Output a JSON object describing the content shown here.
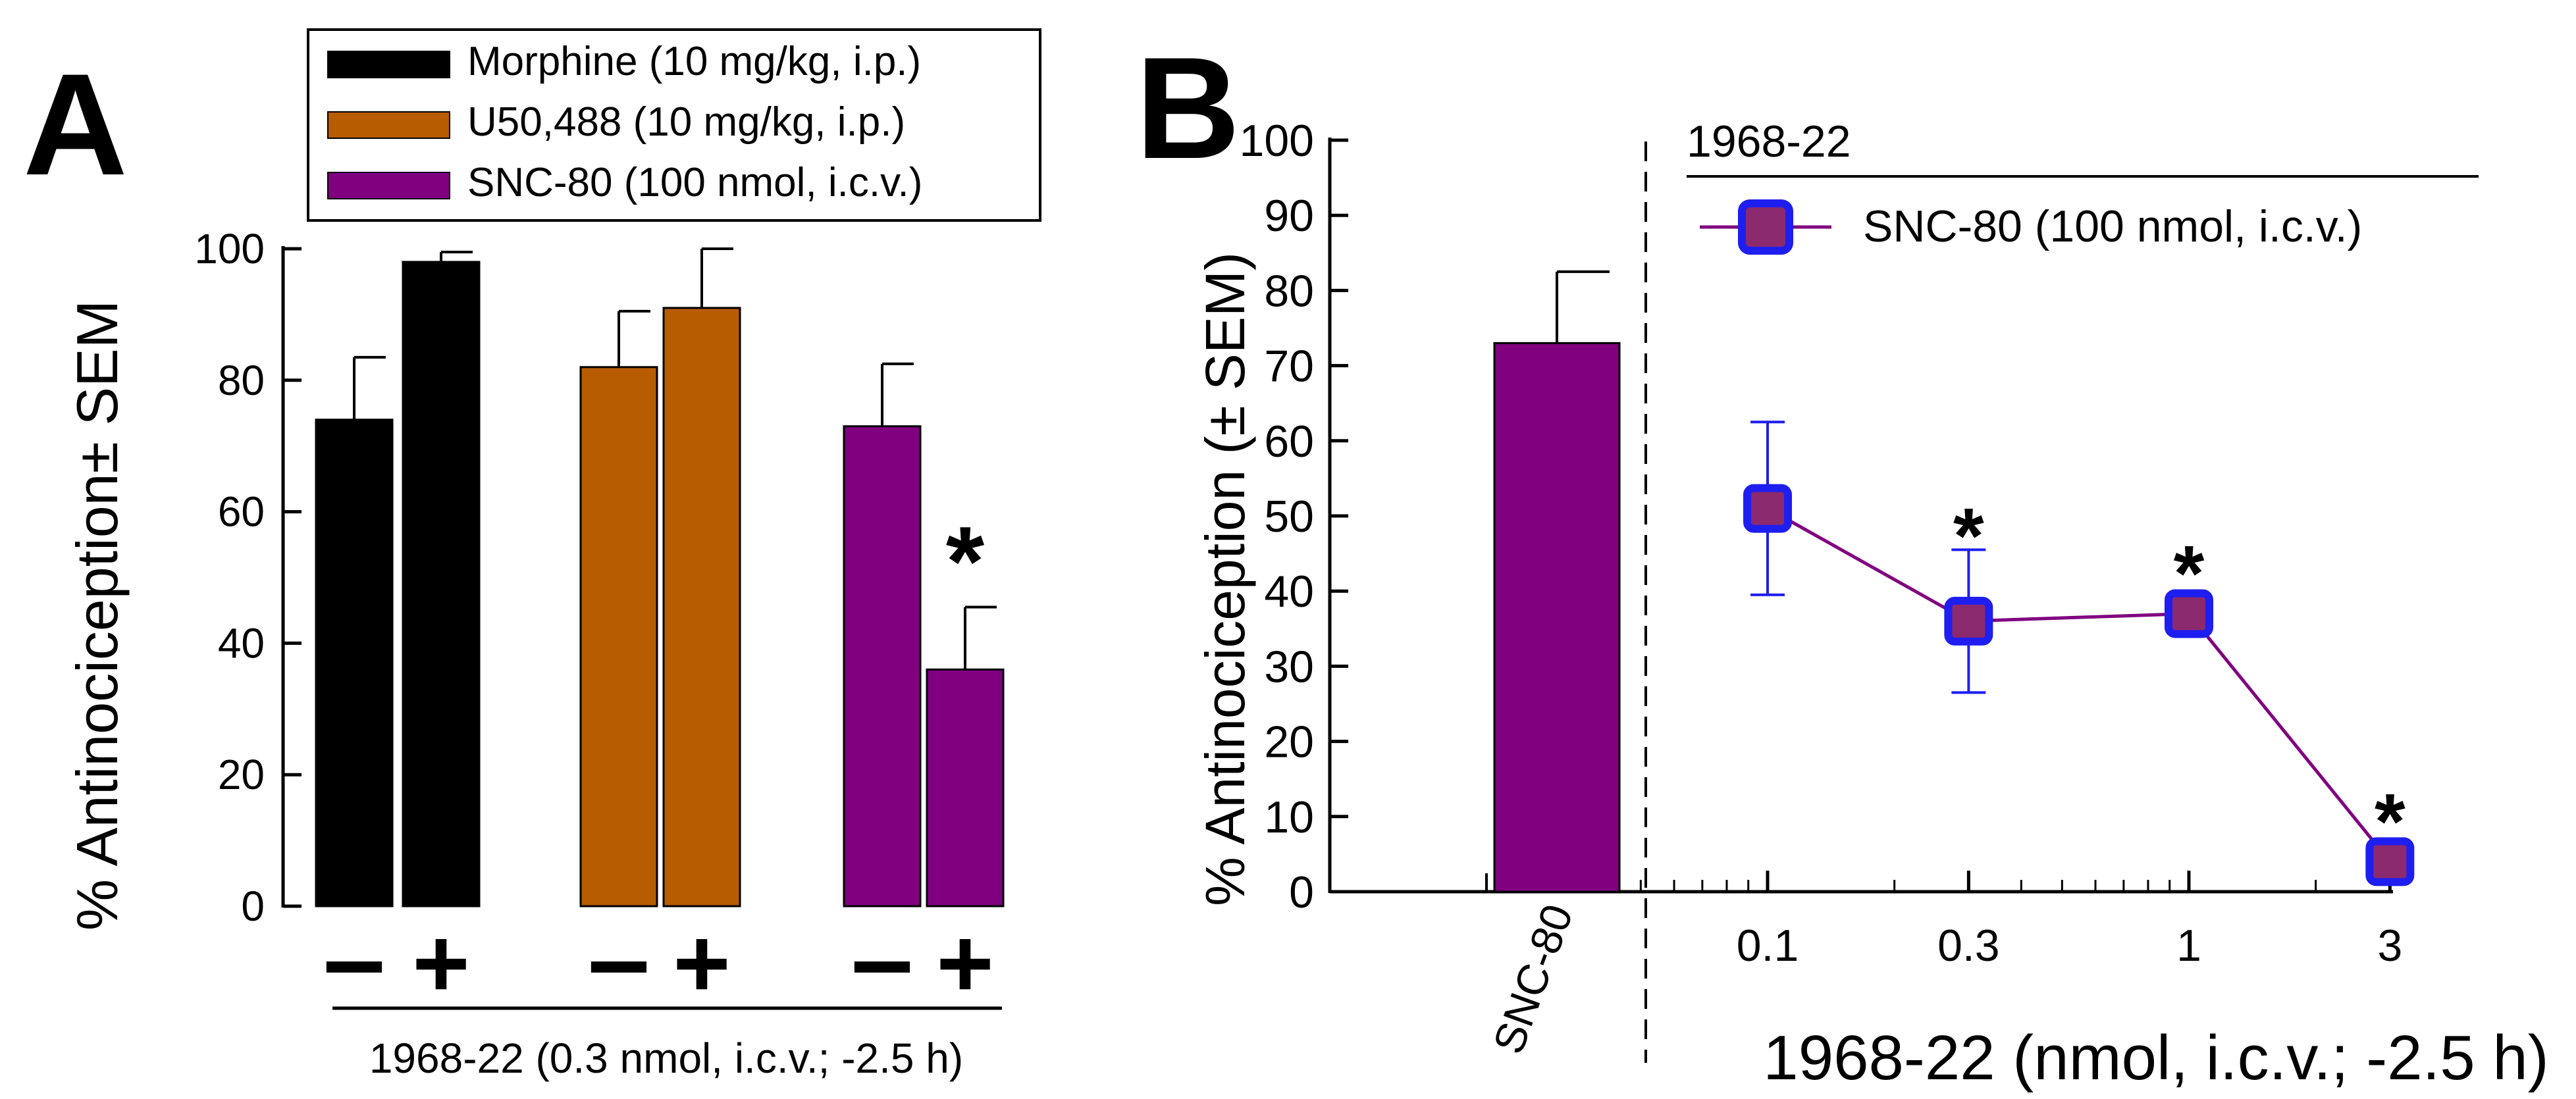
{
  "colors": {
    "morphine": "#000000",
    "u50488": "#b85c00",
    "snc80": "#800080",
    "marker_fill": "#8b2a6e",
    "marker_edge": "#1e1ef0",
    "errorbar_b": "#1e1ef0",
    "line_b": "#800080"
  },
  "chart_data": [
    {
      "panel": "A",
      "type": "bar",
      "panel_label": "A",
      "ylabel": "% Antinociception± SEM",
      "xlabel": "1968-22 (0.3 nmol, i.c.v.; -2.5 h)",
      "ylim": [
        0,
        100
      ],
      "yticks": [
        0,
        20,
        40,
        60,
        80,
        100
      ],
      "legend": {
        "position": "top",
        "entries": [
          "Morphine (10 mg/kg, i.p.)",
          "U50,488 (10 mg/kg, i.p.)",
          "SNC-80 (100 nmol, i.c.v.)"
        ]
      },
      "groups": [
        {
          "name": "Morphine (10 mg/kg, i.p.)",
          "color": "morphine",
          "bars": [
            {
              "treatment": "-",
              "value": 74,
              "sem": 9.5,
              "sig": ""
            },
            {
              "treatment": "+",
              "value": 98,
              "sem": 1.5,
              "sig": ""
            }
          ]
        },
        {
          "name": "U50,488 (10 mg/kg, i.p.)",
          "color": "u50488",
          "bars": [
            {
              "treatment": "-",
              "value": 82,
              "sem": 8.5,
              "sig": ""
            },
            {
              "treatment": "+",
              "value": 91,
              "sem": 9,
              "sig": ""
            }
          ]
        },
        {
          "name": "SNC-80 (100 nmol, i.c.v.)",
          "color": "snc80",
          "bars": [
            {
              "treatment": "-",
              "value": 73,
              "sem": 9.5,
              "sig": ""
            },
            {
              "treatment": "+",
              "value": 36,
              "sem": 9.5,
              "sig": "*"
            }
          ]
        }
      ]
    },
    {
      "panel": "B",
      "type": "line",
      "panel_label": "B",
      "ylabel": "% Antinociception (± SEM)",
      "xlabel": "1968-22 (nmol, i.c.v.; -2.5 h)",
      "ylim": [
        0,
        100
      ],
      "yticks": [
        0,
        10,
        20,
        30,
        40,
        50,
        60,
        70,
        80,
        90,
        100
      ],
      "xscale": "log",
      "xticks": [
        "0.1",
        "0.3",
        "1",
        "3"
      ],
      "control_bar": {
        "label": "SNC-80",
        "value": 73,
        "sem": 9.5
      },
      "series_header": "1968-22",
      "legend": {
        "position": "top-right",
        "entries": [
          "SNC-80 (100 nmol, i.c.v.)"
        ]
      },
      "series": [
        {
          "name": "SNC-80 (100 nmol, i.c.v.)",
          "x": [
            0.1,
            0.3,
            1,
            3
          ],
          "y": [
            51,
            36,
            37,
            4
          ],
          "sem": [
            11.5,
            9.5,
            0.5,
            0.5
          ],
          "sig": [
            "",
            "*",
            "*",
            "*"
          ]
        }
      ]
    }
  ]
}
